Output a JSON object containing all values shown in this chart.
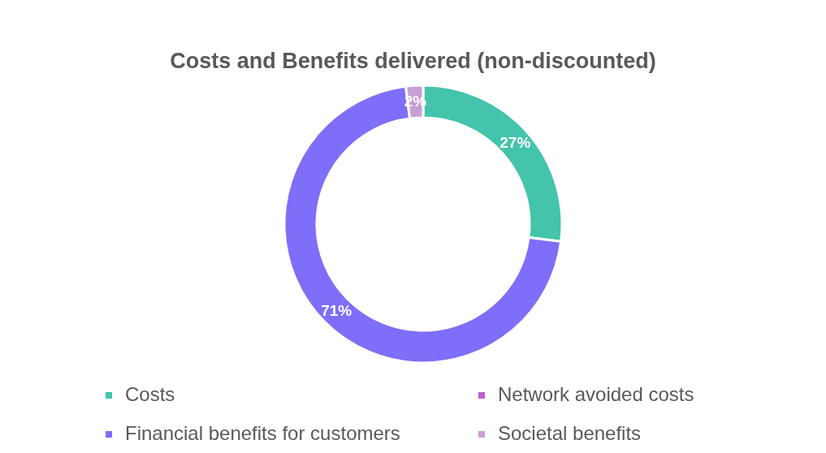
{
  "chart_data": {
    "type": "donut",
    "title": "Costs and Benefits delivered (non-discounted)",
    "categories": [
      "Costs",
      "Network avoided costs",
      "Financial benefits for customers",
      "Societal benefits"
    ],
    "values": [
      27,
      0,
      71,
      2
    ],
    "colors": [
      "#43c4ab",
      "#c45ad6",
      "#7f6ef9",
      "#c79fd5"
    ],
    "value_labels": [
      "27%",
      null,
      "71%",
      "2%"
    ],
    "legend": "bottom"
  }
}
